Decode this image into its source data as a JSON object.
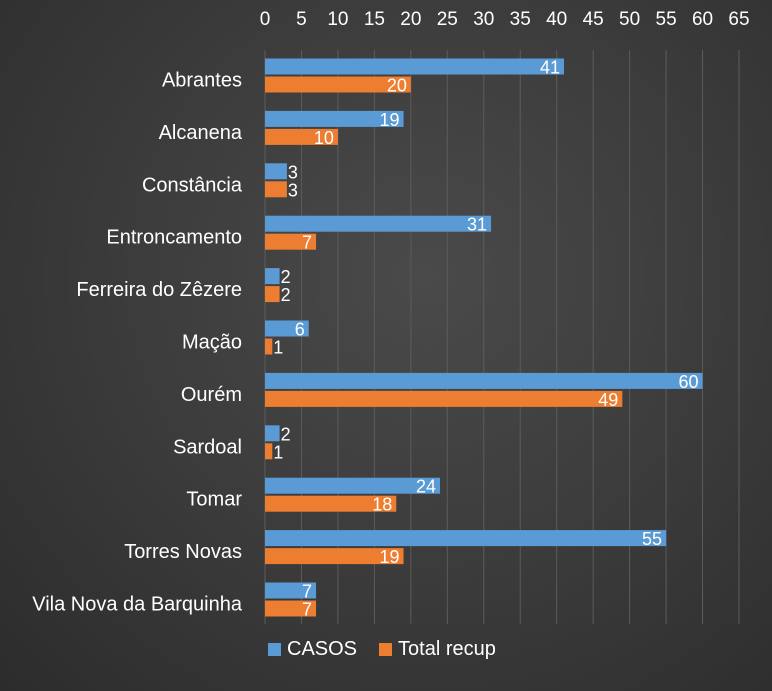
{
  "chart_data": {
    "type": "bar",
    "orientation": "horizontal",
    "categories": [
      "Abrantes",
      "Alcanena",
      "Constância",
      "Entroncamento",
      "Ferreira do Zêzere",
      "Mação",
      "Ourém",
      "Sardoal",
      "Tomar",
      "Torres Novas",
      "Vila Nova da Barquinha"
    ],
    "series": [
      {
        "name": "CASOS",
        "color": "#5b9bd5",
        "values": [
          41,
          19,
          3,
          31,
          2,
          6,
          60,
          2,
          24,
          55,
          7
        ]
      },
      {
        "name": "Total recup",
        "color": "#ed7d31",
        "values": [
          20,
          10,
          3,
          7,
          2,
          1,
          49,
          1,
          18,
          19,
          7
        ]
      }
    ],
    "xlim": [
      0,
      65
    ],
    "xticks": [
      0,
      5,
      10,
      15,
      20,
      25,
      30,
      35,
      40,
      45,
      50,
      55,
      60,
      65
    ],
    "x_axis_position": "top",
    "grid": true,
    "legend_position": "bottom"
  }
}
